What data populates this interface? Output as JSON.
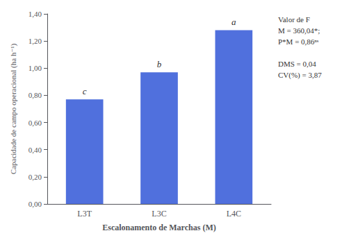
{
  "chart_data": {
    "type": "bar",
    "categories": [
      "L3T",
      "L3C",
      "L4C"
    ],
    "values": [
      0.77,
      0.97,
      1.28
    ],
    "bar_labels": [
      "c",
      "b",
      "a"
    ],
    "xlabel": "Escalonamento de Marchas (M)",
    "ylabel": "Capacidade de campo operacional (ha h⁻¹)",
    "annotation": "Valor de F\nM = 360,04*;\nP*M = 0,86ⁿˢ\n\nDMS = 0,04\nCV(%) = 3,87",
    "ylim": [
      0,
      1.4
    ],
    "yticks": [
      {
        "value": 0.0,
        "label": "0,00"
      },
      {
        "value": 0.2,
        "label": "0,20"
      },
      {
        "value": 0.4,
        "label": "0,40"
      },
      {
        "value": 0.6,
        "label": "0,60"
      },
      {
        "value": 0.8,
        "label": "0,80"
      },
      {
        "value": 1.0,
        "label": "1,00"
      },
      {
        "value": 1.2,
        "label": "1,20"
      },
      {
        "value": 1.4,
        "label": "1,40"
      }
    ],
    "grid": false
  }
}
